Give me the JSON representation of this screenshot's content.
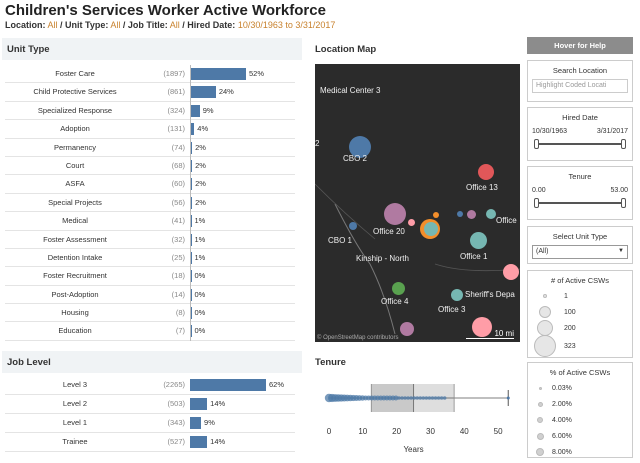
{
  "title": "Children's Services Worker Active Workforce",
  "filters": {
    "location_label": "Location:",
    "location_value": "All",
    "unit_type_label": " / Unit Type:",
    "unit_type_value": "All",
    "job_title_label": " / Job Title:",
    "job_title_value": "All",
    "hired_label": " / Hired Date:",
    "hired_value": "10/30/1963 to 3/31/2017"
  },
  "unit_type": {
    "header": "Unit Type",
    "rows": [
      {
        "label": "Foster Care",
        "count": "(1897)",
        "pct": "52%",
        "value": 52
      },
      {
        "label": "Child Protective Services",
        "count": "(861)",
        "pct": "24%",
        "value": 24
      },
      {
        "label": "Specialized Response",
        "count": "(324)",
        "pct": "9%",
        "value": 9
      },
      {
        "label": "Adoption",
        "count": "(131)",
        "pct": "4%",
        "value": 4
      },
      {
        "label": "Permanency",
        "count": "(74)",
        "pct": "2%",
        "value": 2
      },
      {
        "label": "Court",
        "count": "(68)",
        "pct": "2%",
        "value": 2
      },
      {
        "label": "ASFA",
        "count": "(60)",
        "pct": "2%",
        "value": 2
      },
      {
        "label": "Special Projects",
        "count": "(56)",
        "pct": "2%",
        "value": 2
      },
      {
        "label": "Medical",
        "count": "(41)",
        "pct": "1%",
        "value": 1
      },
      {
        "label": "Foster Assessment",
        "count": "(32)",
        "pct": "1%",
        "value": 1
      },
      {
        "label": "Detention Intake",
        "count": "(25)",
        "pct": "1%",
        "value": 1
      },
      {
        "label": "Foster Recruitment",
        "count": "(18)",
        "pct": "0%",
        "value": 0.5
      },
      {
        "label": "Post-Adoption",
        "count": "(14)",
        "pct": "0%",
        "value": 0.4
      },
      {
        "label": "Housing",
        "count": "(8)",
        "pct": "0%",
        "value": 0.2
      },
      {
        "label": "Education",
        "count": "(7)",
        "pct": "0%",
        "value": 0.2
      }
    ]
  },
  "job_level": {
    "header": "Job Level",
    "rows": [
      {
        "label": "Level 3",
        "count": "(2265)",
        "pct": "62%",
        "value": 62
      },
      {
        "label": "Level 2",
        "count": "(503)",
        "pct": "14%",
        "value": 14
      },
      {
        "label": "Level 1",
        "count": "(343)",
        "pct": "9%",
        "value": 9
      },
      {
        "label": "Trainee",
        "count": "(527)",
        "pct": "14%",
        "value": 14
      }
    ]
  },
  "map": {
    "header": "Location Map",
    "labels": [
      "Medical Center 3",
      "2",
      "CBO 2",
      "Office 13",
      "Office",
      "Office 20",
      "CBO 1",
      "Office 1",
      "Kinship - North",
      "Office 4",
      "Sheriff's Depa",
      "Office 3"
    ],
    "credit": "© OpenStreetMap contributors",
    "scale": "10 mi",
    "dot_colors": [
      "#4e79a7",
      "#e15759",
      "#b07aa1",
      "#f28e2b",
      "#76b7b2",
      "#59a14f",
      "#ff9da7",
      "#edc948"
    ]
  },
  "tenure": {
    "header": "Tenure",
    "axis_ticks": [
      "0",
      "10",
      "20",
      "30",
      "40",
      "50"
    ],
    "axis_label": "Years",
    "min": 0,
    "max": 55,
    "q1": 12.5,
    "median": 25,
    "q3": 37,
    "whisker_low": 0,
    "whisker_high": 53
  },
  "sidebar": {
    "help": "Hover for Help",
    "search_title": "Search Location",
    "search_placeholder": "Highlight Coded Locati",
    "hired_title": "Hired Date",
    "hired_from": "10/30/1963",
    "hired_to": "3/31/2017",
    "tenure_title": "Tenure",
    "tenure_from": "0.00",
    "tenure_to": "53.00",
    "unit_type_title": "Select Unit Type",
    "unit_type_value": "(All)",
    "csw_title": "# of Active CSWs",
    "csw_legend": [
      "1",
      "100",
      "200",
      "323"
    ],
    "pct_title": "% of Active CSWs",
    "pct_legend": [
      "0.03%",
      "2.00%",
      "4.00%",
      "6.00%",
      "8.00%"
    ]
  }
}
